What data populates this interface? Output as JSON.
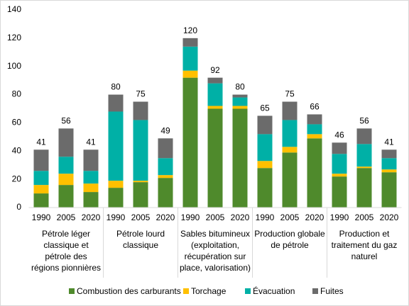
{
  "chart_data": {
    "type": "stacked-bar",
    "groups": [
      {
        "label": "Pétrole léger classique et pétrole des régions pionnières",
        "categories": [
          "1990",
          "2005",
          "2020"
        ]
      },
      {
        "label": "Pétrole lourd classique",
        "categories": [
          "1990",
          "2005",
          "2020"
        ]
      },
      {
        "label": "Sables bitumineux (exploitation, récupération sur place, valorisation)",
        "categories": [
          "1990",
          "2005",
          "2020"
        ]
      },
      {
        "label": "Production globale de pétrole",
        "categories": [
          "1990",
          "2005",
          "2020"
        ]
      },
      {
        "label": "Production et traitement du gaz naturel",
        "categories": [
          "1990",
          "2005",
          "2020"
        ]
      }
    ],
    "series": [
      {
        "name": "Combustion des carburants",
        "color": "#4f8a2c",
        "values": [
          10,
          16,
          11,
          14,
          18,
          21,
          92,
          70,
          70,
          28,
          39,
          49,
          22,
          28,
          25
        ]
      },
      {
        "name": "Torchage",
        "color": "#ffc000",
        "values": [
          6,
          8,
          6,
          5,
          1,
          2,
          5,
          2,
          2,
          5,
          4,
          3,
          2,
          1,
          2
        ]
      },
      {
        "name": "Évacuation",
        "color": "#00b0a6",
        "values": [
          10,
          12,
          9,
          49,
          43,
          12,
          17,
          16,
          6,
          19,
          19,
          7,
          14,
          16,
          8
        ]
      },
      {
        "name": "Fuites",
        "color": "#6b6b6b",
        "values": [
          15,
          20,
          15,
          12,
          13,
          14,
          6,
          4,
          2,
          13,
          13,
          7,
          8,
          11,
          6
        ]
      }
    ],
    "totals": [
      41,
      56,
      41,
      80,
      75,
      49,
      120,
      92,
      80,
      65,
      75,
      66,
      46,
      56,
      41
    ],
    "ylim": [
      0,
      140
    ],
    "yticks": [
      0,
      20,
      40,
      60,
      80,
      100,
      120,
      140
    ],
    "grid": false
  }
}
